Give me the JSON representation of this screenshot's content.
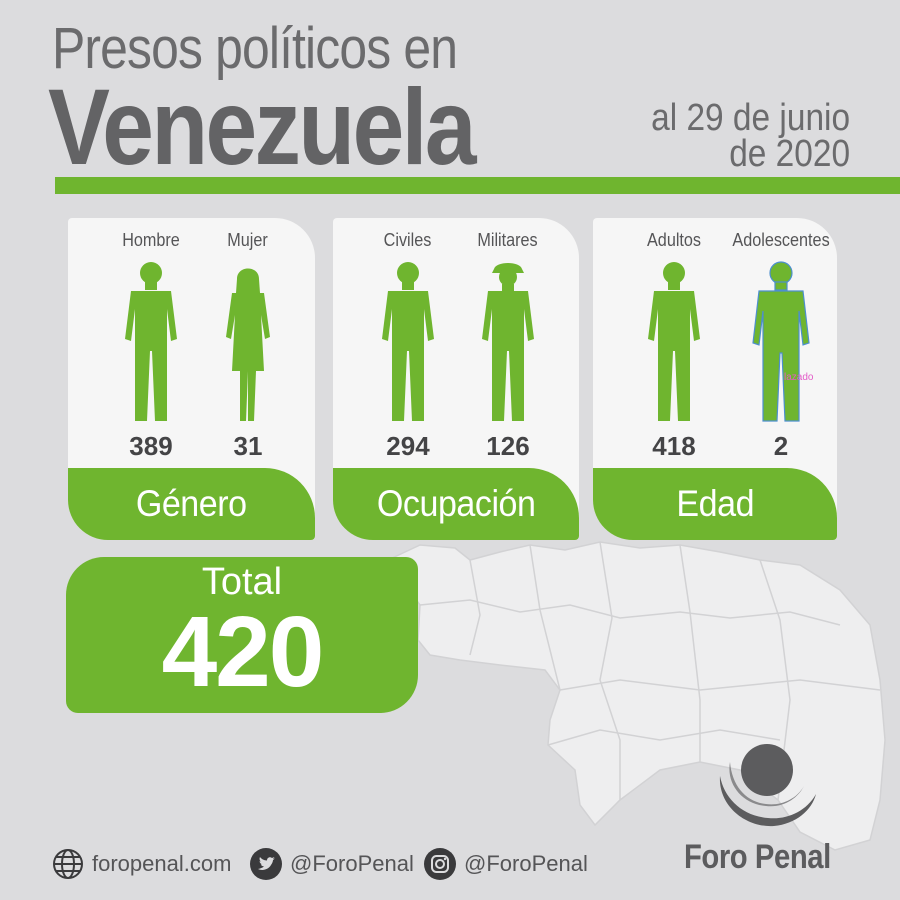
{
  "header": {
    "title_line1": "Presos políticos en",
    "title_line2": "Venezuela",
    "date_line1": "al 29 de junio",
    "date_line2": "de 2020"
  },
  "cards": [
    {
      "category": "Género",
      "items": [
        {
          "label": "Hombre",
          "value": "389"
        },
        {
          "label": "Mujer",
          "value": "31"
        }
      ]
    },
    {
      "category": "Ocupación",
      "items": [
        {
          "label": "Civiles",
          "value": "294"
        },
        {
          "label": "Militares",
          "value": "126"
        }
      ]
    },
    {
      "category": "Edad",
      "items": [
        {
          "label": "Adultos",
          "value": "418"
        },
        {
          "label": "Adolescentes",
          "value": "2"
        }
      ]
    }
  ],
  "total": {
    "label": "Total",
    "value": "420"
  },
  "stamp_text": "lazado",
  "social": {
    "website": "foropenal.com",
    "twitter": "@ForoPenal",
    "instagram": "@ForoPenal"
  },
  "brand": {
    "name": "Foro Penal"
  },
  "colors": {
    "accent": "#6fb52f",
    "background": "#dcdcde",
    "text": "#636365",
    "map": "#eeeeef"
  },
  "icons": {
    "website": "globe-icon",
    "twitter": "twitter-bird-icon",
    "instagram": "instagram-icon"
  }
}
